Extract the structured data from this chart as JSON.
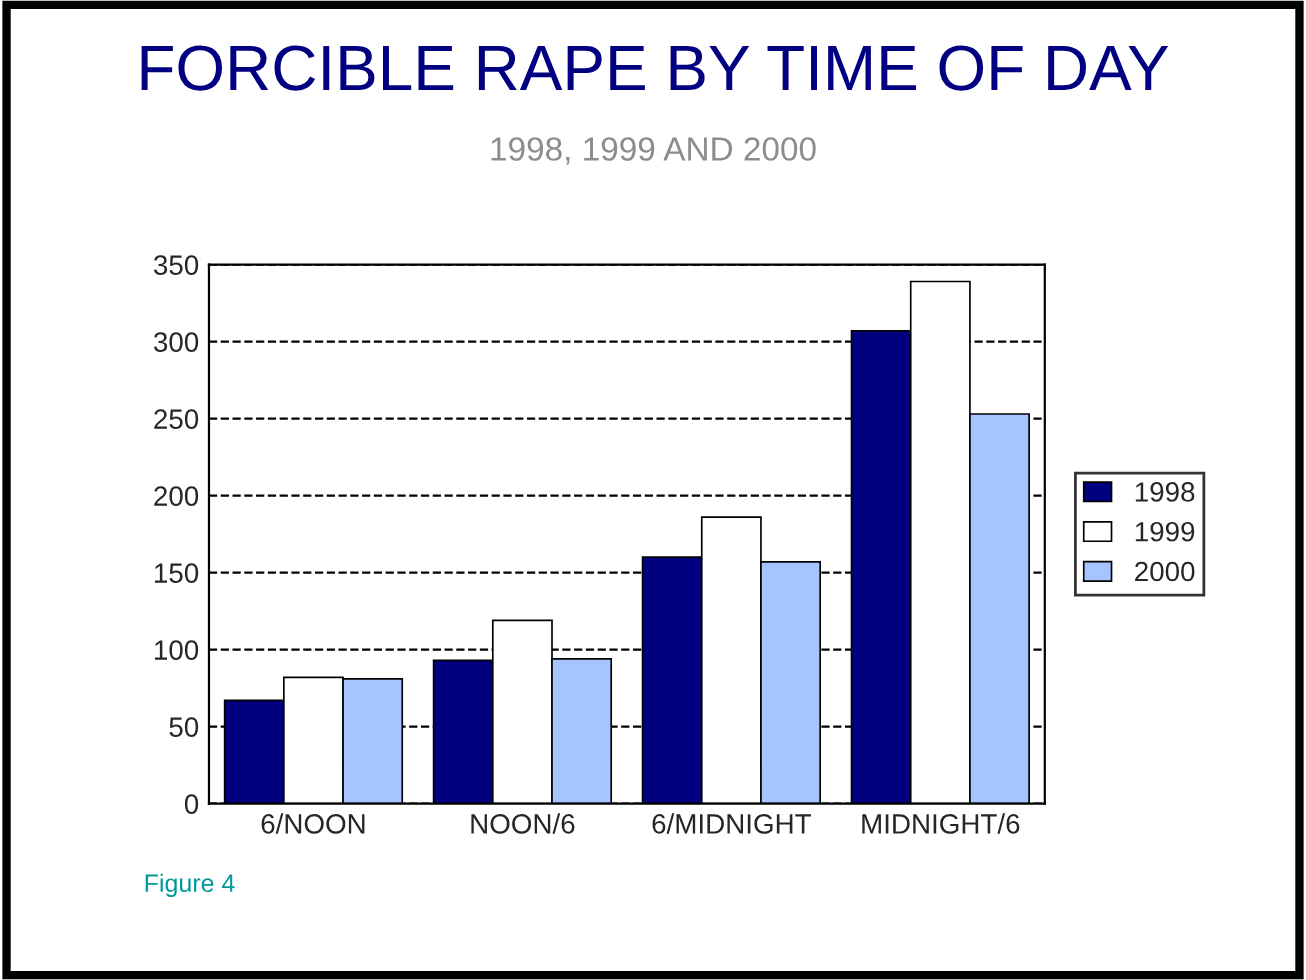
{
  "chart_data": {
    "type": "bar",
    "title": "FORCIBLE RAPE BY TIME OF DAY",
    "subtitle": "1998, 1999 AND 2000",
    "categories": [
      "6/NOON",
      "NOON/6",
      "6/MIDNIGHT",
      "MIDNIGHT/6"
    ],
    "series": [
      {
        "name": "1998",
        "color": "#000080",
        "values": [
          67,
          93,
          160,
          307
        ]
      },
      {
        "name": "1999",
        "color": "#ffffff",
        "values": [
          82,
          119,
          186,
          339
        ]
      },
      {
        "name": "2000",
        "color": "#a6c4ff",
        "values": [
          81,
          94,
          157,
          253
        ]
      }
    ],
    "ylim": [
      0,
      350
    ],
    "yticks": [
      0,
      50,
      100,
      150,
      200,
      250,
      300,
      350
    ],
    "grid": "y",
    "legend": "right",
    "annotations": [
      "Figure 4"
    ]
  }
}
